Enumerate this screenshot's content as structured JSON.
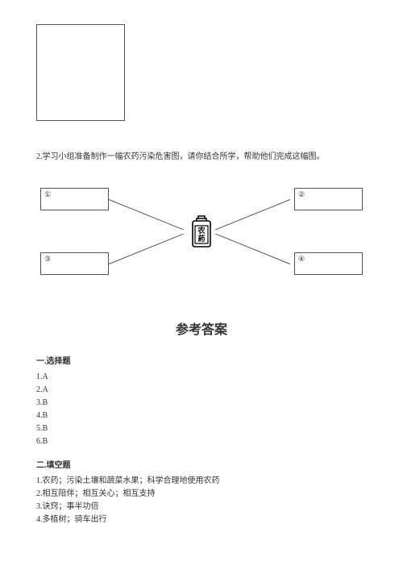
{
  "question": {
    "text": "2.学习小组准备制作一幅农药污染危害图，请你结合所学，帮助他们完成这幅图。"
  },
  "diagram": {
    "labels": {
      "n1": "①",
      "n2": "②",
      "n3": "③",
      "n4": "④"
    },
    "bottle_text_top": "农",
    "bottle_text_bottom": "葯"
  },
  "answers": {
    "title": "参考答案",
    "section1_title": "一.选择题",
    "section1_items": [
      "1.A",
      "2.A",
      "3.B",
      "4.B",
      "5.B",
      "6.B"
    ],
    "section2_title": "二.填空题",
    "section2_items": [
      "1.农药；污染土壤和蔬菜水果；科学合理地使用农药",
      "2.相互陪伴；相互关心；相互支持",
      "3.诀窍；事半功倍",
      "4.多植树；骑车出行"
    ]
  },
  "colors": {
    "text": "#333333",
    "border": "#555555",
    "bg": "#ffffff"
  }
}
